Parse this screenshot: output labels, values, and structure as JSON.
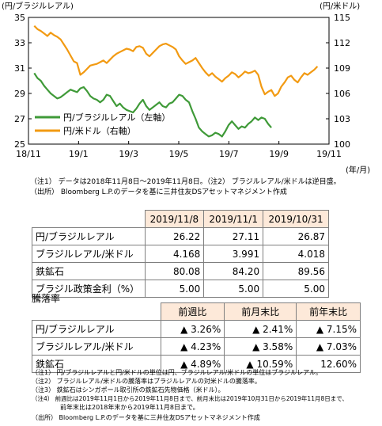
{
  "chart_data": {
    "type": "line",
    "left_axis_title": "(円/ブラジルレアル)",
    "right_axis_title": "(円/米ドル)",
    "x_unit": "(年/月)",
    "x_ticks": [
      "18/11",
      "19/1",
      "19/3",
      "19/5",
      "19/7",
      "19/9",
      "19/11"
    ],
    "left_ylim": [
      25,
      35
    ],
    "left_ticks": [
      "25",
      "27",
      "29",
      "31",
      "33",
      "35"
    ],
    "right_ylim": [
      100,
      115
    ],
    "right_ticks": [
      "100",
      "103",
      "106",
      "109",
      "112",
      "115"
    ],
    "series": [
      {
        "name": "円/ブラジルレアル（左軸）",
        "axis": "left",
        "color": "#3f9a38",
        "values": [
          30.6,
          30.2,
          30.0,
          29.6,
          29.3,
          29.0,
          28.8,
          28.6,
          28.7,
          28.9,
          29.1,
          29.3,
          29.2,
          29.1,
          29.4,
          29.5,
          29.2,
          28.8,
          28.6,
          28.5,
          28.3,
          28.5,
          28.9,
          28.8,
          28.4,
          28.0,
          28.2,
          27.9,
          27.7,
          27.6,
          27.5,
          27.8,
          28.2,
          28.5,
          28.0,
          27.7,
          27.9,
          28.1,
          28.3,
          28.0,
          27.9,
          28.2,
          28.3,
          28.6,
          28.9,
          28.8,
          28.5,
          28.3,
          27.6,
          27.0,
          26.3,
          26.0,
          25.8,
          25.6,
          25.7,
          25.9,
          25.8,
          25.6,
          26.0,
          26.5,
          26.8,
          26.5,
          26.2,
          26.4,
          26.3,
          26.6,
          26.8,
          27.1,
          26.9,
          27.1,
          27.0,
          26.6,
          26.3
        ],
        "x": [
          "2018-11-08",
          "2018-11-12",
          "2018-11-16",
          "2018-11-20",
          "2018-11-24",
          "2018-11-28",
          "2018-12-02",
          "2018-12-06",
          "2018-12-10",
          "2018-12-14",
          "2018-12-18",
          "2018-12-22",
          "2018-12-26",
          "2018-12-30",
          "2019-01-03",
          "2019-01-07",
          "2019-01-11",
          "2019-01-15",
          "2019-01-19",
          "2019-01-23",
          "2019-01-27",
          "2019-01-31",
          "2019-02-04",
          "2019-02-08",
          "2019-02-12",
          "2019-02-16",
          "2019-02-20",
          "2019-02-24",
          "2019-02-28",
          "2019-03-04",
          "2019-03-08",
          "2019-03-12",
          "2019-03-16",
          "2019-03-20",
          "2019-03-24",
          "2019-03-28",
          "2019-04-01",
          "2019-04-05",
          "2019-04-09",
          "2019-04-13",
          "2019-04-17",
          "2019-04-21",
          "2019-04-25",
          "2019-04-29",
          "2019-05-03",
          "2019-05-07",
          "2019-05-11",
          "2019-05-15",
          "2019-05-19",
          "2019-05-23",
          "2019-05-27",
          "2019-05-31",
          "2019-06-04",
          "2019-06-08",
          "2019-06-12",
          "2019-06-16",
          "2019-06-20",
          "2019-06-24",
          "2019-06-28",
          "2019-07-02",
          "2019-07-06",
          "2019-07-10",
          "2019-07-14",
          "2019-07-18",
          "2019-07-22",
          "2019-07-26",
          "2019-07-30",
          "2019-08-03",
          "2019-08-07",
          "2019-08-11",
          "2019-08-15",
          "2019-08-19",
          "2019-08-23"
        ]
      },
      {
        "name": "円/米ドル（右軸）",
        "axis": "right",
        "color": "#f29a12",
        "values": [
          114.0,
          113.6,
          113.4,
          113.1,
          112.8,
          113.2,
          112.9,
          112.7,
          112.4,
          111.8,
          111.2,
          110.5,
          109.8,
          109.6,
          108.2,
          108.5,
          108.9,
          109.3,
          109.4,
          109.5,
          109.7,
          109.9,
          109.6,
          110.0,
          110.4,
          110.7,
          110.9,
          111.1,
          111.3,
          111.2,
          111.0,
          111.5,
          111.6,
          111.4,
          110.7,
          110.4,
          110.8,
          111.2,
          111.6,
          111.8,
          111.9,
          111.7,
          111.5,
          111.2,
          110.4,
          109.9,
          109.5,
          109.7,
          109.9,
          110.2,
          109.6,
          109.0,
          108.5,
          108.1,
          108.4,
          108.0,
          107.7,
          107.4,
          107.8,
          108.1,
          108.5,
          108.3,
          107.9,
          108.2,
          108.6,
          108.4,
          108.5,
          108.7,
          108.2,
          106.8,
          105.9,
          106.2,
          106.4,
          105.7,
          106.0,
          106.8,
          107.3,
          107.9,
          108.1,
          107.6,
          107.3,
          107.9,
          108.4,
          108.2,
          108.5,
          108.8,
          109.2
        ],
        "x": [
          "2018-11-08",
          "2018-11-12",
          "2018-11-16",
          "2018-11-20",
          "2018-11-24",
          "2018-11-28",
          "2018-12-02",
          "2018-12-06",
          "2018-12-10",
          "2018-12-14",
          "2018-12-18",
          "2018-12-22",
          "2018-12-26",
          "2018-12-30",
          "2019-01-03",
          "2019-01-07",
          "2019-01-11",
          "2019-01-15",
          "2019-01-19",
          "2019-01-23",
          "2019-01-27",
          "2019-01-31",
          "2019-02-04",
          "2019-02-08",
          "2019-02-12",
          "2019-02-16",
          "2019-02-20",
          "2019-02-24",
          "2019-02-28",
          "2019-03-04",
          "2019-03-08",
          "2019-03-12",
          "2019-03-16",
          "2019-03-20",
          "2019-03-24",
          "2019-03-28",
          "2019-04-01",
          "2019-04-05",
          "2019-04-09",
          "2019-04-13",
          "2019-04-17",
          "2019-04-21",
          "2019-04-25",
          "2019-04-29",
          "2019-05-03",
          "2019-05-07",
          "2019-05-11",
          "2019-05-15",
          "2019-05-19",
          "2019-05-23",
          "2019-05-27",
          "2019-05-31",
          "2019-06-04",
          "2019-06-08",
          "2019-06-12",
          "2019-06-16",
          "2019-06-20",
          "2019-06-24",
          "2019-06-28",
          "2019-07-02",
          "2019-07-06",
          "2019-07-10",
          "2019-07-14",
          "2019-07-18",
          "2019-07-22",
          "2019-07-26",
          "2019-07-30",
          "2019-08-03",
          "2019-08-07",
          "2019-08-11",
          "2019-08-15",
          "2019-08-19",
          "2019-08-23",
          "2019-08-27",
          "2019-08-31",
          "2019-09-04",
          "2019-09-08",
          "2019-09-12",
          "2019-09-16",
          "2019-09-20",
          "2019-09-24",
          "2019-09-28",
          "2019-10-02",
          "2019-10-06",
          "2019-10-10",
          "2019-10-14",
          "2019-10-18"
        ]
      }
    ],
    "legend_placement": "bottom-left",
    "grid": false
  },
  "chart_notes": {
    "note1": "（注1） データは2018年11月8日～2019年11月8日。（注2） ブラジルレアル/米ドルは逆目盛。",
    "source": "（出所） Bloomberg L.P.のデータを基に三井住友DSアセットマネジメント作成"
  },
  "price_table": {
    "headers": [
      "2019/11/8",
      "2019/11/1",
      "2019/10/31"
    ],
    "rows": [
      {
        "label": "円/ブラジルレアル",
        "values": [
          "26.22",
          "27.11",
          "26.87"
        ]
      },
      {
        "label": "ブラジルレアル/米ドル",
        "values": [
          "4.168",
          "3.991",
          "4.018"
        ]
      },
      {
        "label": "鉄鉱石",
        "values": [
          "80.08",
          "84.20",
          "89.56"
        ]
      },
      {
        "label": "ブラジル政策金利（%）",
        "values": [
          "5.00",
          "5.00",
          "5.00"
        ]
      }
    ]
  },
  "change_table": {
    "section_label": "騰落率",
    "headers": [
      "前週比",
      "前月末比",
      "前年末比"
    ],
    "rows": [
      {
        "label": "円/ブラジルレアル",
        "values": [
          "▲ 3.26%",
          "▲ 2.41%",
          "▲ 7.15%"
        ]
      },
      {
        "label": "ブラジルレアル/米ドル",
        "values": [
          "▲ 4.23%",
          "▲ 3.58%",
          "▲ 7.03%"
        ]
      },
      {
        "label": "鉄鉱石",
        "values": [
          "▲ 4.89%",
          "▲ 10.59%",
          "12.60%"
        ]
      }
    ]
  },
  "footnotes": {
    "n1": "（注1） 円/ブラジルレアルと円/米ドルの単位は円、ブラジルレアル/米ドルの単位はブラジルレアル。",
    "n2": "（注2） ブラジルレアル/米ドルの騰落率はブラジルレアルの対米ドルの騰落率。",
    "n3": "（注3） 鉄鉱石はシンガポール取引所の鉄鉱石先物価格（米ドル）。",
    "n4a": "（注4） 前週比は2019年11月1日から2019年11月8日まで、前月末比は2019年10月31日から2019年11月8日まで、",
    "n4b": "前年末比は2018年末から2019年11月8日まで。",
    "source": "（出所） Bloomberg L.P.のデータを基に三井住友DSアセットマネジメント作成"
  }
}
